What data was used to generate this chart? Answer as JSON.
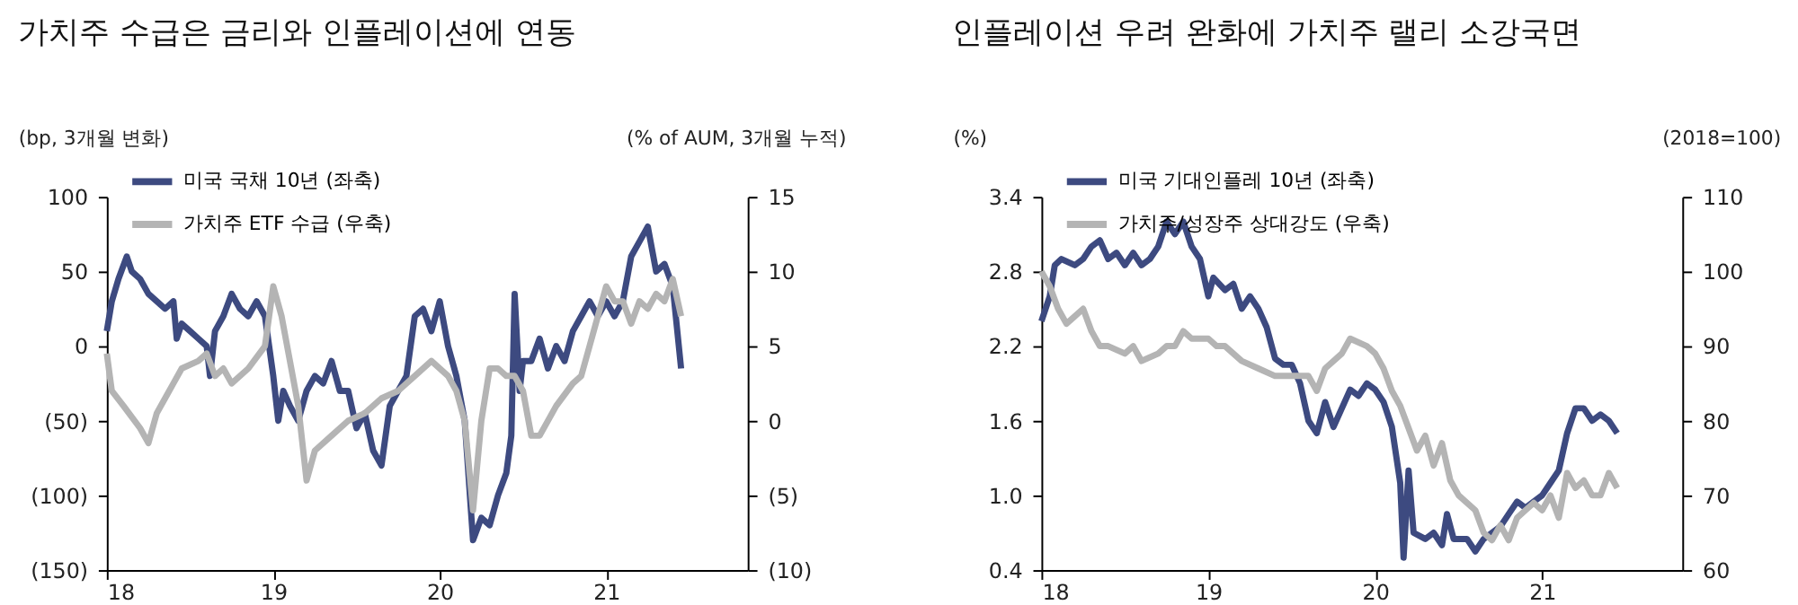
{
  "chart_data": [
    {
      "type": "line",
      "title": "가치주 수급은 금리와 인플레이션에 연동",
      "ylabel": "(bp, 3개월 변화)",
      "y2label": "(% of AUM, 3개월 누적)",
      "xlim": [
        18,
        21.85
      ],
      "xticks": [
        18,
        19,
        20,
        21
      ],
      "ylim": [
        -150,
        100
      ],
      "yticks": [
        100,
        50,
        0,
        {
          "value": -50,
          "label": "(50)"
        },
        {
          "value": -100,
          "label": "(100)"
        },
        {
          "value": -150,
          "label": "(150)"
        }
      ],
      "y2lim": [
        -10,
        15
      ],
      "y2ticks": [
        15,
        10,
        5,
        0,
        {
          "value": -5,
          "label": "(5)"
        },
        {
          "value": -10,
          "label": "(10)"
        }
      ],
      "grid": false,
      "legend": "top left",
      "marker": "none",
      "line_style": "solid",
      "series": [
        {
          "name": "미국 국채 10년 (좌축)",
          "color": "#3d4a80",
          "axis": "y",
          "x": [
            18.0,
            18.03,
            18.07,
            18.12,
            18.15,
            18.2,
            18.25,
            18.3,
            18.35,
            18.4,
            18.42,
            18.45,
            18.5,
            18.55,
            18.6,
            18.62,
            18.65,
            18.7,
            18.75,
            18.8,
            18.85,
            18.9,
            18.95,
            19.0,
            19.03,
            19.06,
            19.1,
            19.15,
            19.2,
            19.25,
            19.3,
            19.35,
            19.4,
            19.45,
            19.5,
            19.55,
            19.6,
            19.65,
            19.7,
            19.75,
            19.8,
            19.85,
            19.9,
            19.95,
            20.0,
            20.05,
            20.1,
            20.15,
            20.2,
            20.25,
            20.3,
            20.35,
            20.4,
            20.43,
            20.45,
            20.48,
            20.5,
            20.55,
            20.6,
            20.65,
            20.7,
            20.75,
            20.8,
            20.85,
            20.9,
            20.95,
            21.0,
            21.05,
            21.1,
            21.15,
            21.2,
            21.25,
            21.3,
            21.35,
            21.4,
            21.45
          ],
          "values": [
            10,
            30,
            45,
            60,
            50,
            45,
            35,
            30,
            25,
            30,
            5,
            15,
            10,
            5,
            0,
            -20,
            10,
            20,
            35,
            25,
            20,
            30,
            20,
            -20,
            -50,
            -30,
            -40,
            -50,
            -30,
            -20,
            -25,
            -10,
            -30,
            -30,
            -55,
            -45,
            -70,
            -80,
            -40,
            -30,
            -20,
            20,
            25,
            10,
            30,
            0,
            -20,
            -50,
            -130,
            -115,
            -120,
            -100,
            -85,
            -60,
            35,
            -30,
            -10,
            -10,
            5,
            -15,
            0,
            -10,
            10,
            20,
            30,
            20,
            30,
            20,
            30,
            60,
            70,
            80,
            50,
            55,
            40,
            -15
          ]
        },
        {
          "name": "가치주 ETF 수급 (우축)",
          "color": "#b4b4b4",
          "axis": "y2",
          "x": [
            18.0,
            18.03,
            18.1,
            18.2,
            18.25,
            18.3,
            18.35,
            18.4,
            18.45,
            18.55,
            18.6,
            18.65,
            18.7,
            18.75,
            18.85,
            18.95,
            19.0,
            19.05,
            19.1,
            19.15,
            19.2,
            19.25,
            19.35,
            19.45,
            19.55,
            19.65,
            19.75,
            19.85,
            19.95,
            20.05,
            20.1,
            20.15,
            20.2,
            20.25,
            20.3,
            20.35,
            20.4,
            20.45,
            20.5,
            20.55,
            20.6,
            20.7,
            20.8,
            20.85,
            20.9,
            20.95,
            21.0,
            21.05,
            21.1,
            21.15,
            21.2,
            21.25,
            21.3,
            21.35,
            21.4,
            21.45
          ],
          "values": [
            4.5,
            2,
            1,
            -0.5,
            -1.5,
            0.5,
            1.5,
            2.5,
            3.5,
            4,
            4.5,
            3,
            3.5,
            2.5,
            3.5,
            5,
            9,
            7,
            4,
            1,
            -4,
            -2,
            -1,
            0,
            0.5,
            1.5,
            2,
            3,
            4,
            3,
            2,
            0,
            -6,
            0,
            3.5,
            3.5,
            3,
            3,
            2,
            -1,
            -1,
            1,
            2.5,
            3,
            5,
            7,
            9,
            8,
            8,
            6.5,
            8,
            7.5,
            8.5,
            8,
            9.5,
            7
          ]
        }
      ]
    },
    {
      "type": "line",
      "title": "인플레이션 우려 완화에 가치주 랠리 소강국면",
      "ylabel": "(%)",
      "y2label": "(2018=100)",
      "xlim": [
        18,
        21.84
      ],
      "xticks": [
        18,
        19,
        20,
        21
      ],
      "ylim": [
        0.4,
        3.4
      ],
      "yticks": [
        {
          "value": 3.4,
          "label": "3.4"
        },
        {
          "value": 2.8,
          "label": "2.8"
        },
        {
          "value": 2.2,
          "label": "2.2"
        },
        {
          "value": 1.6,
          "label": "1.6"
        },
        {
          "value": 1.0,
          "label": "1.0"
        },
        {
          "value": 0.4,
          "label": "0.4"
        }
      ],
      "y2lim": [
        60,
        110
      ],
      "y2ticks": [
        110,
        100,
        90,
        80,
        70,
        60
      ],
      "grid": false,
      "legend": "top left",
      "marker": "none",
      "line_style": "solid",
      "series": [
        {
          "name": "미국 기대인플레 10년 (좌축)",
          "color": "#3d4a80",
          "axis": "y",
          "x": [
            18.0,
            18.05,
            18.08,
            18.12,
            18.2,
            18.25,
            18.3,
            18.35,
            18.4,
            18.45,
            18.5,
            18.55,
            18.6,
            18.65,
            18.7,
            18.75,
            18.8,
            18.85,
            18.9,
            18.95,
            19.0,
            19.03,
            19.1,
            19.15,
            19.2,
            19.25,
            19.3,
            19.35,
            19.4,
            19.45,
            19.5,
            19.55,
            19.6,
            19.65,
            19.7,
            19.75,
            19.8,
            19.85,
            19.9,
            19.95,
            20.0,
            20.05,
            20.1,
            20.15,
            20.17,
            20.2,
            20.23,
            20.3,
            20.35,
            20.4,
            20.43,
            20.47,
            20.55,
            20.6,
            20.65,
            20.7,
            20.75,
            20.8,
            20.85,
            20.9,
            21.0,
            21.05,
            21.1,
            21.15,
            21.2,
            21.25,
            21.3,
            21.35,
            21.4,
            21.45
          ],
          "values": [
            2.4,
            2.6,
            2.85,
            2.9,
            2.85,
            2.9,
            3.0,
            3.05,
            2.9,
            2.95,
            2.85,
            2.95,
            2.85,
            2.9,
            3.0,
            3.2,
            3.1,
            3.2,
            3.0,
            2.9,
            2.6,
            2.75,
            2.65,
            2.7,
            2.5,
            2.6,
            2.5,
            2.35,
            2.1,
            2.05,
            2.05,
            1.9,
            1.6,
            1.5,
            1.75,
            1.55,
            1.7,
            1.85,
            1.8,
            1.9,
            1.85,
            1.75,
            1.55,
            1.1,
            0.5,
            1.2,
            0.7,
            0.65,
            0.7,
            0.6,
            0.85,
            0.65,
            0.65,
            0.55,
            0.65,
            0.7,
            0.75,
            0.85,
            0.95,
            0.9,
            1.0,
            1.1,
            1.2,
            1.5,
            1.7,
            1.7,
            1.6,
            1.65,
            1.6,
            1.5
          ]
        },
        {
          "name": "가치주/성장주 상대강도 (우축)",
          "color": "#b4b4b4",
          "axis": "y2",
          "x": [
            18.0,
            18.05,
            18.1,
            18.15,
            18.2,
            18.25,
            18.3,
            18.35,
            18.4,
            18.5,
            18.55,
            18.6,
            18.7,
            18.75,
            18.8,
            18.85,
            18.9,
            19.0,
            19.05,
            19.1,
            19.2,
            19.3,
            19.4,
            19.5,
            19.6,
            19.65,
            19.7,
            19.8,
            19.85,
            19.95,
            20.0,
            20.05,
            20.1,
            20.15,
            20.2,
            20.25,
            20.3,
            20.35,
            20.4,
            20.45,
            20.5,
            20.6,
            20.65,
            20.7,
            20.75,
            20.8,
            20.85,
            20.9,
            20.95,
            21.0,
            21.05,
            21.1,
            21.15,
            21.2,
            21.25,
            21.3,
            21.35,
            21.4,
            21.45
          ],
          "values": [
            100,
            98,
            95,
            93,
            94,
            95,
            92,
            90,
            90,
            89,
            90,
            88,
            89,
            90,
            90,
            92,
            91,
            91,
            90,
            90,
            88,
            87,
            86,
            86,
            86,
            84,
            87,
            89,
            91,
            90,
            89,
            87,
            84,
            82,
            79,
            76,
            78,
            74,
            77,
            72,
            70,
            68,
            65,
            64,
            66,
            64,
            67,
            68,
            69,
            68,
            70,
            67,
            73,
            71,
            72,
            70,
            70,
            73,
            71
          ]
        }
      ]
    }
  ]
}
